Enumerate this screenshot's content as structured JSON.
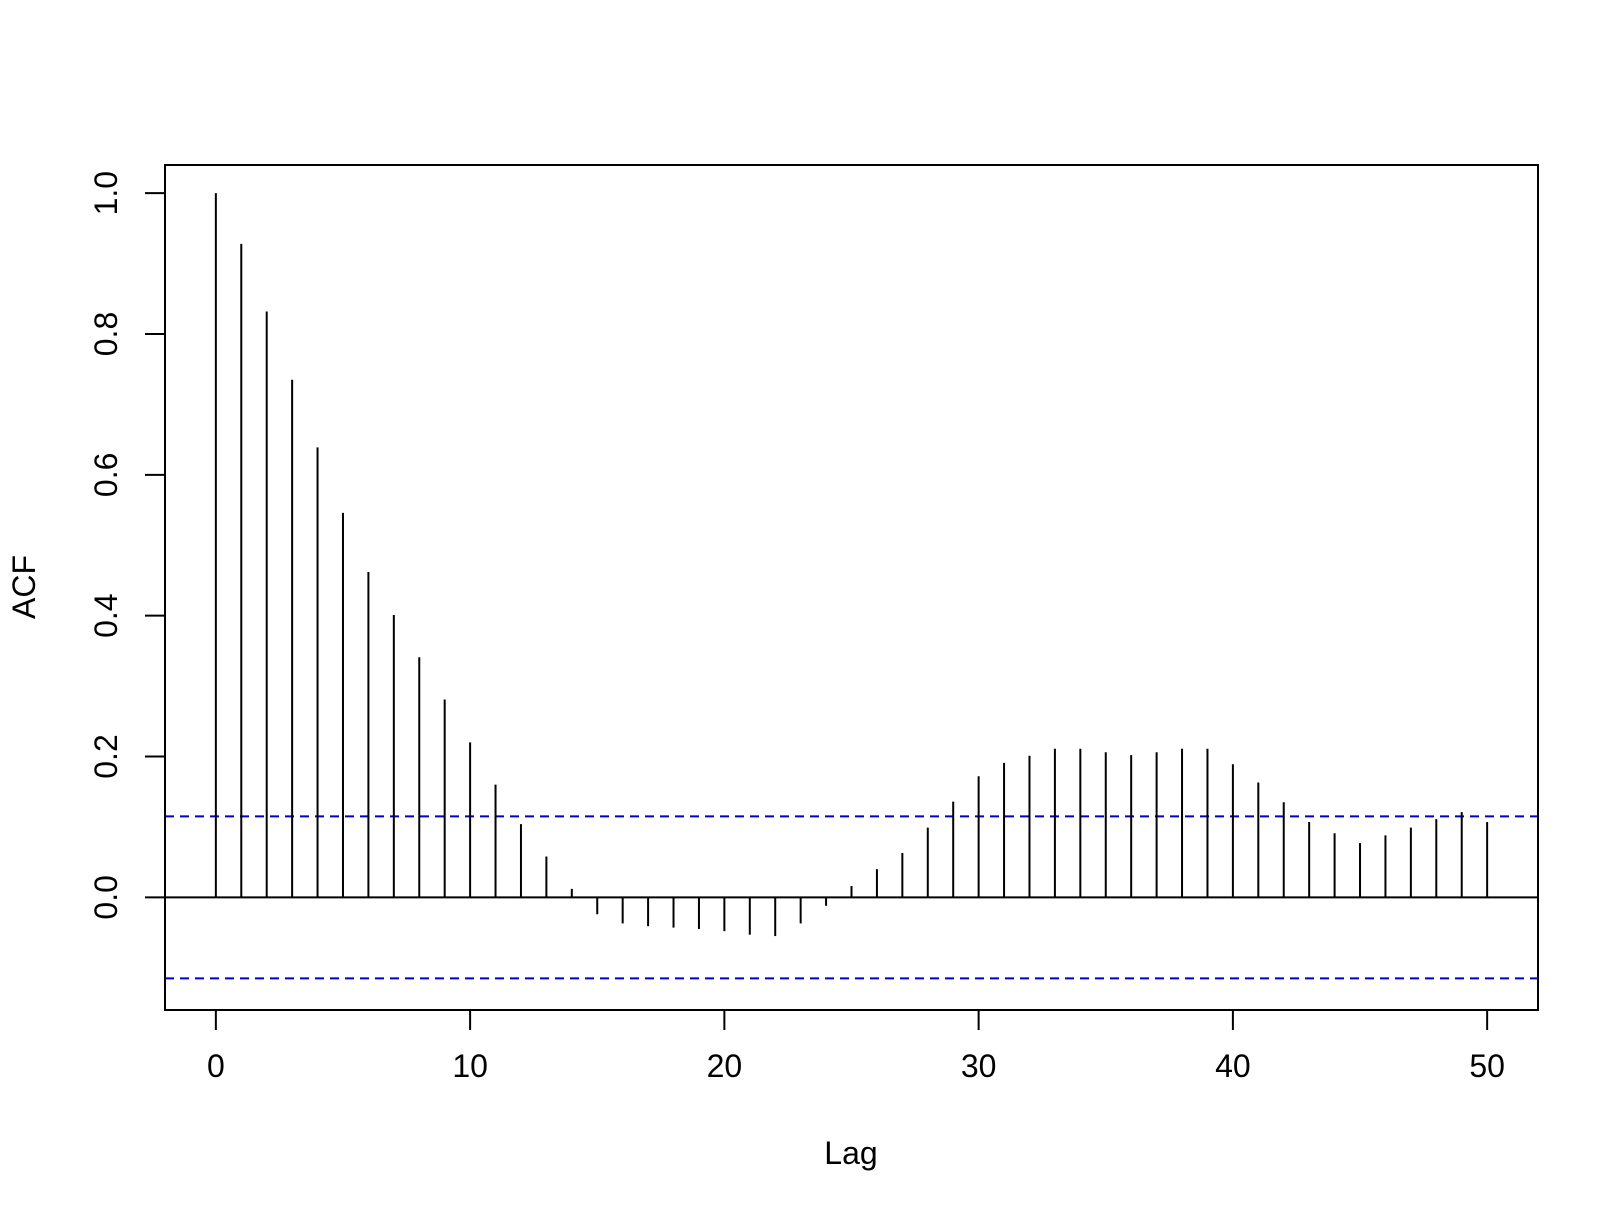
{
  "chart_data": {
    "type": "bar",
    "title": "",
    "xlabel": "Lag",
    "ylabel": "ACF",
    "xlim": [
      -2,
      52
    ],
    "ylim": [
      -0.16,
      1.04
    ],
    "xticks": [
      0,
      10,
      20,
      30,
      40,
      50
    ],
    "xtick_labels": [
      "0",
      "10",
      "20",
      "30",
      "40",
      "50"
    ],
    "yticks": [
      0.0,
      0.2,
      0.4,
      0.6,
      0.8,
      1.0
    ],
    "ytick_labels": [
      "0.0",
      "0.2",
      "0.4",
      "0.6",
      "0.8",
      "1.0"
    ],
    "grid": false,
    "legend": "none",
    "lags": [
      0,
      1,
      2,
      3,
      4,
      5,
      6,
      7,
      8,
      9,
      10,
      11,
      12,
      13,
      14,
      15,
      16,
      17,
      18,
      19,
      20,
      21,
      22,
      23,
      24,
      25,
      26,
      27,
      28,
      29,
      30,
      31,
      32,
      33,
      34,
      35,
      36,
      37,
      38,
      39,
      40,
      41,
      42,
      43,
      44,
      45,
      46,
      47,
      48,
      49,
      50
    ],
    "acf": [
      1.0,
      0.928,
      0.832,
      0.735,
      0.639,
      0.546,
      0.462,
      0.401,
      0.341,
      0.281,
      0.22,
      0.16,
      0.104,
      0.058,
      0.012,
      -0.024,
      -0.037,
      -0.041,
      -0.043,
      -0.045,
      -0.048,
      -0.053,
      -0.055,
      -0.037,
      -0.012,
      0.016,
      0.04,
      0.063,
      0.099,
      0.136,
      0.172,
      0.191,
      0.201,
      0.211,
      0.211,
      0.206,
      0.202,
      0.206,
      0.211,
      0.211,
      0.189,
      0.163,
      0.135,
      0.107,
      0.091,
      0.077,
      0.088,
      0.099,
      0.111,
      0.121,
      0.107
    ],
    "confidence_band": [
      0.115,
      -0.115
    ],
    "colors": {
      "spikes": "#000000",
      "zero_line": "#000000",
      "confidence_band": "#0000cc",
      "frame": "#000000"
    }
  }
}
